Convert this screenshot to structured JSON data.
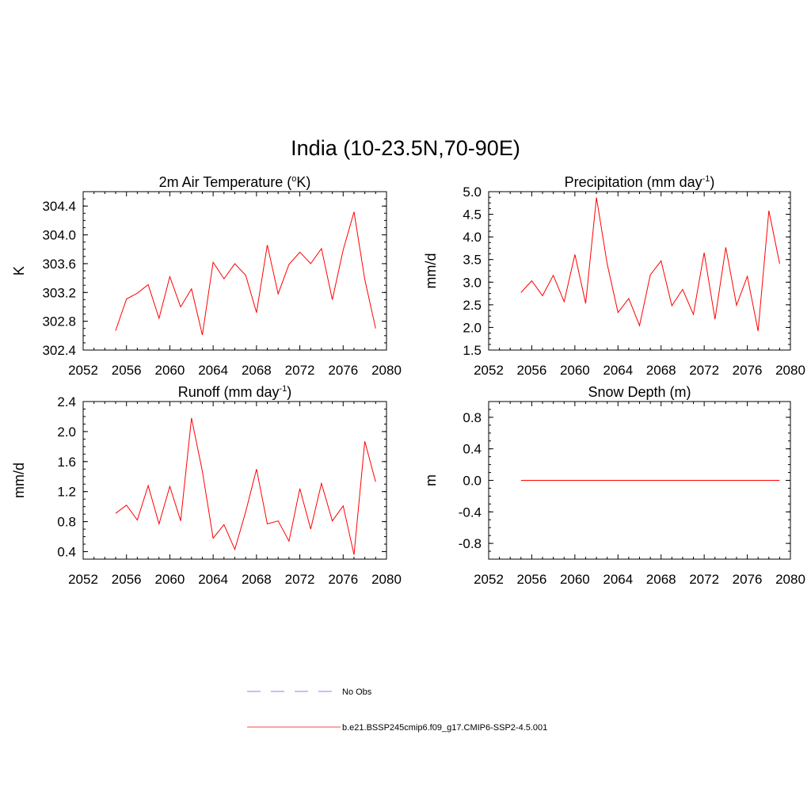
{
  "page": {
    "title": "India (10-23.5N,70-90E)"
  },
  "legend": {
    "items": [
      {
        "label": "No Obs",
        "color": "#9a9aff",
        "dash": "dashed"
      },
      {
        "label": "b.e21.BSSP245cmip6.f09_g17.CMIP6-SSP2-4.5.001",
        "color": "#ff6b6b",
        "dash": "solid"
      }
    ]
  },
  "chart_data": [
    {
      "type": "line",
      "title": "2m Air Temperature (°K)",
      "title_main": "2m Air Temperature (",
      "title_sup": "o",
      "title_end": "K)",
      "ylabel": "K",
      "xlim": [
        2052,
        2080
      ],
      "ylim": [
        302.4,
        304.6
      ],
      "xticks": [
        2052,
        2056,
        2060,
        2064,
        2068,
        2072,
        2076,
        2080
      ],
      "yticks": [
        302.4,
        302.8,
        303.2,
        303.6,
        304.0,
        304.4
      ],
      "ytick_labels": [
        "302.4",
        "302.8",
        "303.2",
        "303.6",
        "304.0",
        "304.4"
      ],
      "grid": false,
      "series": [
        {
          "color": "#ff0000",
          "x": [
            2055,
            2056,
            2057,
            2058,
            2059,
            2060,
            2061,
            2062,
            2063,
            2064,
            2065,
            2066,
            2067,
            2068,
            2069,
            2070,
            2071,
            2072,
            2073,
            2074,
            2075,
            2076,
            2077,
            2078,
            2079
          ],
          "y": [
            302.67,
            303.11,
            303.19,
            303.31,
            302.84,
            303.42,
            303.0,
            303.25,
            302.61,
            303.62,
            303.39,
            303.6,
            303.44,
            302.92,
            303.86,
            303.18,
            303.59,
            303.76,
            303.6,
            303.81,
            303.1,
            303.79,
            304.32,
            303.38,
            302.7
          ]
        }
      ]
    },
    {
      "type": "line",
      "title": "Precipitation (mm day-1)",
      "title_main": "Precipitation (mm day",
      "title_sup": "-1",
      "title_end": ")",
      "ylabel": "mm/d",
      "xlim": [
        2052,
        2080
      ],
      "ylim": [
        1.5,
        5.0
      ],
      "xticks": [
        2052,
        2056,
        2060,
        2064,
        2068,
        2072,
        2076,
        2080
      ],
      "yticks": [
        1.5,
        2.0,
        2.5,
        3.0,
        3.5,
        4.0,
        4.5,
        5.0
      ],
      "ytick_labels": [
        "1.5",
        "2.0",
        "2.5",
        "3.0",
        "3.5",
        "4.0",
        "4.5",
        "5.0"
      ],
      "grid": false,
      "series": [
        {
          "color": "#ff0000",
          "x": [
            2055,
            2056,
            2057,
            2058,
            2059,
            2060,
            2061,
            2062,
            2063,
            2064,
            2065,
            2066,
            2067,
            2068,
            2069,
            2070,
            2071,
            2072,
            2073,
            2074,
            2075,
            2076,
            2077,
            2078,
            2079
          ],
          "y": [
            2.77,
            3.03,
            2.7,
            3.15,
            2.57,
            3.61,
            2.53,
            4.87,
            3.4,
            2.33,
            2.64,
            2.04,
            3.16,
            3.47,
            2.48,
            2.84,
            2.29,
            3.65,
            2.18,
            3.77,
            2.49,
            3.13,
            1.92,
            4.58,
            3.41
          ]
        }
      ]
    },
    {
      "type": "line",
      "title": "Runoff (mm day-1)",
      "title_main": "Runoff (mm day",
      "title_sup": "-1",
      "title_end": ")",
      "ylabel": "mm/d",
      "xlim": [
        2052,
        2080
      ],
      "ylim": [
        0.3,
        2.4
      ],
      "xticks": [
        2052,
        2056,
        2060,
        2064,
        2068,
        2072,
        2076,
        2080
      ],
      "yticks": [
        0.4,
        0.8,
        1.2,
        1.6,
        2.0,
        2.4
      ],
      "ytick_labels": [
        "0.4",
        "0.8",
        "1.2",
        "1.6",
        "2.0",
        "2.4"
      ],
      "grid": false,
      "series": [
        {
          "color": "#ff0000",
          "x": [
            2055,
            2056,
            2057,
            2058,
            2059,
            2060,
            2061,
            2062,
            2063,
            2064,
            2065,
            2066,
            2067,
            2068,
            2069,
            2070,
            2071,
            2072,
            2073,
            2074,
            2075,
            2076,
            2077,
            2078,
            2079
          ],
          "y": [
            0.91,
            1.02,
            0.82,
            1.28,
            0.77,
            1.27,
            0.81,
            2.18,
            1.47,
            0.58,
            0.76,
            0.43,
            0.93,
            1.5,
            0.77,
            0.81,
            0.54,
            1.24,
            0.7,
            1.31,
            0.81,
            1.01,
            0.36,
            1.87,
            1.33
          ]
        }
      ]
    },
    {
      "type": "line",
      "title": "Snow Depth (m)",
      "title_main": "Snow Depth (m)",
      "title_sup": "",
      "title_end": "",
      "ylabel": "m",
      "xlim": [
        2052,
        2080
      ],
      "ylim": [
        -1.0,
        1.0
      ],
      "xticks": [
        2052,
        2056,
        2060,
        2064,
        2068,
        2072,
        2076,
        2080
      ],
      "yticks": [
        -0.8,
        -0.4,
        0.0,
        0.4,
        0.8
      ],
      "ytick_labels": [
        "-0.8",
        "-0.4",
        "0.0",
        "0.4",
        "0.8"
      ],
      "grid": false,
      "series": [
        {
          "color": "#ff0000",
          "x": [
            2055,
            2079
          ],
          "y": [
            0.0,
            0.0
          ]
        }
      ]
    }
  ]
}
